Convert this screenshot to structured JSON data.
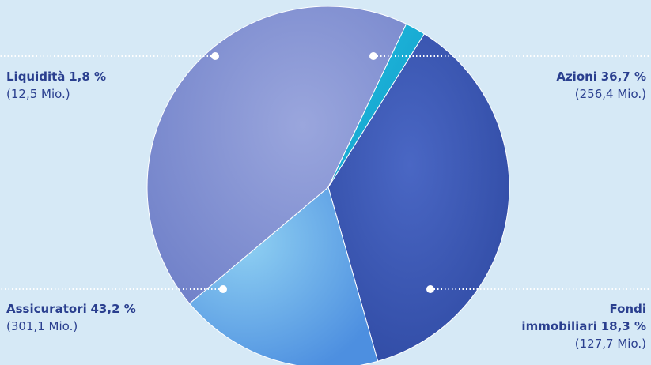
{
  "chart_data": {
    "type": "pie",
    "slices": [
      {
        "label": "Azioni",
        "value": 36.7,
        "value_label": "36,7 %",
        "amount": "(256,4 Mio.)",
        "color": "#3a55b0"
      },
      {
        "label": "Fondi immobiliari",
        "label_lines": [
          "Fondi",
          "immobiliari"
        ],
        "value": 18.3,
        "value_label": "18,3 %",
        "amount": "(127,7 Mio.)",
        "color": "#6aa6e8"
      },
      {
        "label": "Assicuratori",
        "value": 43.2,
        "value_label": "43,2 %",
        "amount": "(301,1 Mio.)",
        "color": "#7f8fd0"
      },
      {
        "label": "Liquidità",
        "value": 1.8,
        "value_label": "1,8 %",
        "amount": "(12,5 Mio.)",
        "color": "#1ab0d8"
      }
    ]
  }
}
